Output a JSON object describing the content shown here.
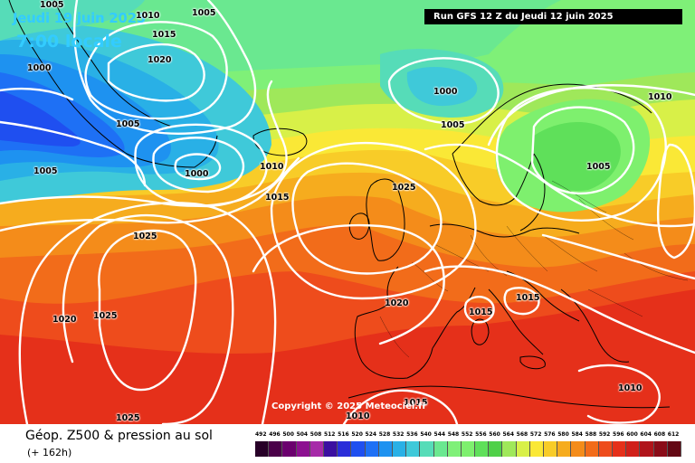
{
  "header": {
    "date": "Jeudi 19 juin 2025",
    "local_time": "7:00 locale",
    "run_info": "Run GFS 12 Z du Jeudi 12 juin 2025",
    "copyright": "Copyright © 2025 Meteociel.fr"
  },
  "footer": {
    "title": "Géop. Z500 & pression au sol",
    "lead_time": "(+ 162h)"
  },
  "legend": {
    "ticks": [
      "492",
      "496",
      "500",
      "504",
      "508",
      "512",
      "516",
      "520",
      "524",
      "528",
      "532",
      "536",
      "540",
      "544",
      "548",
      "552",
      "556",
      "560",
      "564",
      "568",
      "572",
      "576",
      "580",
      "584",
      "588",
      "592",
      "596",
      "600",
      "604",
      "608",
      "612"
    ],
    "colors": [
      "#280028",
      "#4b0049",
      "#6b006e",
      "#8c1090",
      "#a62aa8",
      "#3b0fa0",
      "#2a2dd9",
      "#1f4ff0",
      "#1e70f5",
      "#1e92f0",
      "#29b0e6",
      "#3fc9d9",
      "#56dcb8",
      "#6ae890",
      "#7ff078",
      "#7ef06e",
      "#5fe05a",
      "#4fd048",
      "#9fe85a",
      "#d8f048",
      "#fae836",
      "#f8cc28",
      "#f6ac1e",
      "#f48c1a",
      "#f26c1a",
      "#ee4c1c",
      "#e5301a",
      "#d0201a",
      "#b0141a",
      "#8a0c18",
      "#640814"
    ]
  },
  "pressure_labels": [
    {
      "text": "1005"
    },
    {
      "text": "1010"
    },
    {
      "text": "1005"
    },
    {
      "text": "1015"
    },
    {
      "text": "1020"
    },
    {
      "text": "1000"
    },
    {
      "text": "1000"
    },
    {
      "text": "1005"
    },
    {
      "text": "1005"
    },
    {
      "text": "1010"
    },
    {
      "text": "1005"
    },
    {
      "text": "1000"
    },
    {
      "text": "1010"
    },
    {
      "text": "1015"
    },
    {
      "text": "1025"
    },
    {
      "text": "1025"
    },
    {
      "text": "1005"
    },
    {
      "text": "1020"
    },
    {
      "text": "1025"
    },
    {
      "text": "1020"
    },
    {
      "text": "1015"
    },
    {
      "text": "1015"
    },
    {
      "text": "1010"
    },
    {
      "text": "1015"
    },
    {
      "text": "1025"
    },
    {
      "text": "1010"
    }
  ]
}
